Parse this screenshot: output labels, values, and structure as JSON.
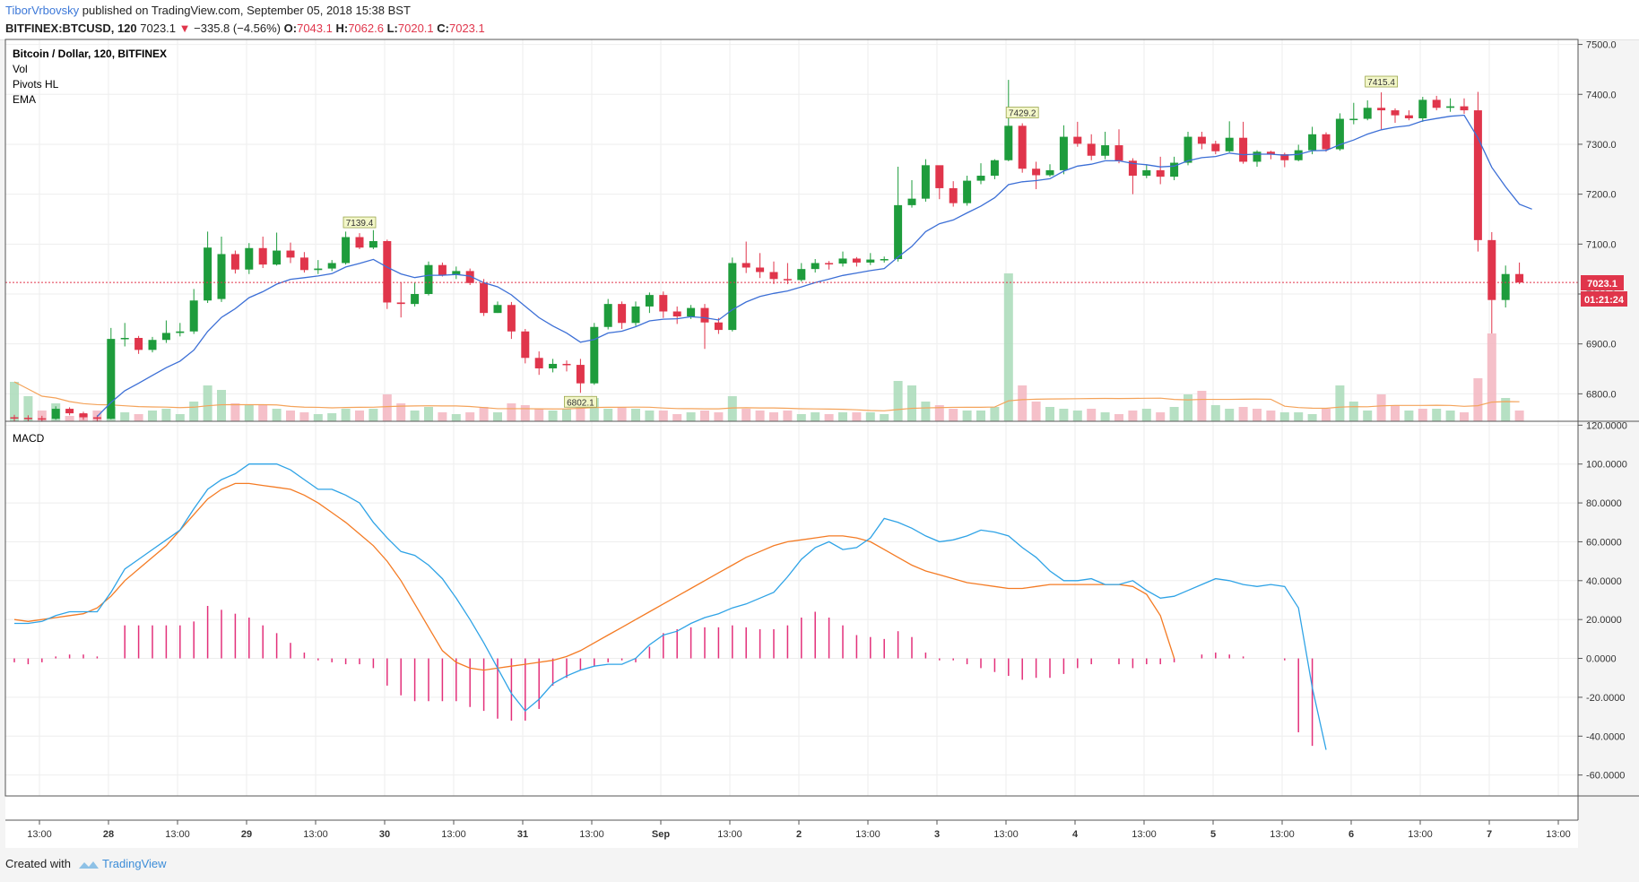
{
  "header": {
    "author": "TiborVrbovsky",
    "published_text": "published on TradingView.com, September 05, 2018 15:38 BST",
    "symbol": "BITFINEX:BTCUSD, 120",
    "last": "7023.1",
    "change_arrow": "▼",
    "change": "−335.8 (−4.56%)",
    "o_label": "O:",
    "o_value": "7043.1",
    "h_label": "H:",
    "h_value": "7062.6",
    "l_label": "L:",
    "l_value": "7020.1",
    "c_label": "C:",
    "c_value": "7023.1"
  },
  "legend": {
    "title": "Bitcoin / Dollar, 120, BITFINEX",
    "vol": "Vol",
    "pivots": "Pivots HL",
    "ema": "EMA",
    "macd": "MACD"
  },
  "price_badge": "7023.1",
  "countdown_badge": "01:21:24",
  "footer": {
    "created_with": "Created with",
    "brand": "TradingView"
  },
  "colors": {
    "up": "#1e9c3c",
    "down": "#e0354b",
    "ema": "#3c6fd6",
    "macd": "#2fa3e6",
    "signal": "#f47b24",
    "hist": "#e3307a",
    "vol_ma": "#f4a35a",
    "author": "#3c78d8"
  },
  "chart_data": {
    "type": "candlestick",
    "price_axis": {
      "ticks": [
        "6800.0",
        "6900.0",
        "7000.0",
        "7100.0",
        "7200.0",
        "7300.0",
        "7400.0",
        "7500.0"
      ],
      "range": [
        6745,
        7510
      ]
    },
    "macd_axis": {
      "ticks": [
        "-60.0000",
        "-40.0000",
        "-20.0000",
        "0.0000",
        "20.0000",
        "40.0000",
        "60.0000",
        "80.0000",
        "100.0000",
        "120.0000"
      ],
      "range": [
        -68,
        122
      ]
    },
    "time_axis": {
      "ticks": [
        "13:00",
        "28",
        "13:00",
        "29",
        "13:00",
        "30",
        "13:00",
        "31",
        "13:00",
        "Sep",
        "13:00",
        "2",
        "13:00",
        "3",
        "13:00",
        "4",
        "13:00",
        "5",
        "13:00",
        "6",
        "13:00",
        "7",
        "13:00"
      ]
    },
    "pivots": [
      {
        "bar": 25,
        "label": "7139.4",
        "type": "high"
      },
      {
        "bar": 41,
        "label": "6802.1",
        "type": "low"
      },
      {
        "bar": 73,
        "label": "7429.2",
        "type": "high"
      },
      {
        "bar": 99,
        "label": "7415.4",
        "type": "high"
      }
    ],
    "candles": [
      [
        6753,
        6752,
        6758,
        6746
      ],
      [
        6752,
        6751,
        6757,
        6745
      ],
      [
        6751,
        6750,
        6756,
        6744
      ],
      [
        6750,
        6770,
        6775,
        6748
      ],
      [
        6770,
        6761,
        6773,
        6757
      ],
      [
        6761,
        6753,
        6764,
        6748
      ],
      [
        6753,
        6750,
        6757,
        6744
      ],
      [
        6750,
        6910,
        6932,
        6749
      ],
      [
        6910,
        6912,
        6942,
        6895
      ],
      [
        6912,
        6888,
        6916,
        6880
      ],
      [
        6888,
        6908,
        6914,
        6883
      ],
      [
        6908,
        6922,
        6947,
        6902
      ],
      [
        6922,
        6925,
        6942,
        6915
      ],
      [
        6925,
        6987,
        7010,
        6920
      ],
      [
        6987,
        7093,
        7125,
        6982
      ],
      [
        6990,
        7080,
        7115,
        6984
      ],
      [
        7080,
        7049,
        7087,
        7041
      ],
      [
        7049,
        7092,
        7102,
        7040
      ],
      [
        7092,
        7059,
        7115,
        7052
      ],
      [
        7059,
        7087,
        7123,
        7057
      ],
      [
        7087,
        7073,
        7103,
        7062
      ],
      [
        7073,
        7048,
        7084,
        7043
      ],
      [
        7048,
        7051,
        7068,
        7040
      ],
      [
        7051,
        7062,
        7068,
        7046
      ],
      [
        7062,
        7114,
        7125,
        7059
      ],
      [
        7114,
        7093,
        7122,
        7090
      ],
      [
        7093,
        7106,
        7128,
        7090
      ],
      [
        7106,
        6983,
        7109,
        6970
      ],
      [
        6983,
        6980,
        7023,
        6953
      ],
      [
        6980,
        7000,
        7023,
        6975
      ],
      [
        7000,
        7058,
        7065,
        6997
      ],
      [
        7058,
        7038,
        7063,
        7035
      ],
      [
        7038,
        7046,
        7055,
        7030
      ],
      [
        7046,
        7022,
        7051,
        7018
      ],
      [
        7022,
        6962,
        7030,
        6956
      ],
      [
        6962,
        6978,
        6985,
        6962
      ],
      [
        6978,
        6925,
        6984,
        6910
      ],
      [
        6925,
        6872,
        6930,
        6861
      ],
      [
        6872,
        6851,
        6885,
        6838
      ],
      [
        6851,
        6860,
        6870,
        6843
      ],
      [
        6860,
        6858,
        6867,
        6845
      ],
      [
        6858,
        6821,
        6870,
        6802
      ],
      [
        6821,
        6934,
        6942,
        6818
      ],
      [
        6934,
        6980,
        6990,
        6929
      ],
      [
        6980,
        6942,
        6985,
        6930
      ],
      [
        6942,
        6975,
        6985,
        6936
      ],
      [
        6975,
        6998,
        7003,
        6962
      ],
      [
        6998,
        6965,
        7005,
        6952
      ],
      [
        6965,
        6955,
        6975,
        6940
      ],
      [
        6955,
        6972,
        6978,
        6950
      ],
      [
        6972,
        6943,
        6980,
        6890
      ],
      [
        6943,
        6928,
        6952,
        6920
      ],
      [
        6928,
        7062,
        7073,
        6925
      ],
      [
        7062,
        7053,
        7105,
        7042
      ],
      [
        7053,
        7044,
        7082,
        7032
      ],
      [
        7044,
        7030,
        7065,
        7020
      ],
      [
        7030,
        7028,
        7062,
        7020
      ],
      [
        7028,
        7050,
        7062,
        7025
      ],
      [
        7050,
        7062,
        7070,
        7043
      ],
      [
        7062,
        7061,
        7066,
        7049
      ],
      [
        7061,
        7071,
        7085,
        7055
      ],
      [
        7071,
        7063,
        7074,
        7055
      ],
      [
        7063,
        7069,
        7082,
        7058
      ],
      [
        7069,
        7070,
        7075,
        7063
      ],
      [
        7070,
        7178,
        7255,
        7065
      ],
      [
        7178,
        7191,
        7228,
        7173
      ],
      [
        7191,
        7258,
        7270,
        7185
      ],
      [
        7258,
        7212,
        7255,
        7190
      ],
      [
        7212,
        7182,
        7226,
        7175
      ],
      [
        7182,
        7227,
        7237,
        7177
      ],
      [
        7227,
        7237,
        7262,
        7220
      ],
      [
        7237,
        7268,
        7270,
        7230
      ],
      [
        7268,
        7337,
        7429,
        7266
      ],
      [
        7337,
        7251,
        7342,
        7243
      ],
      [
        7251,
        7238,
        7265,
        7210
      ],
      [
        7238,
        7248,
        7260,
        7235
      ],
      [
        7248,
        7315,
        7338,
        7240
      ],
      [
        7315,
        7301,
        7345,
        7295
      ],
      [
        7301,
        7277,
        7320,
        7268
      ],
      [
        7277,
        7298,
        7325,
        7270
      ],
      [
        7298,
        7267,
        7330,
        7262
      ],
      [
        7267,
        7237,
        7272,
        7200
      ],
      [
        7237,
        7248,
        7260,
        7232
      ],
      [
        7248,
        7235,
        7275,
        7220
      ],
      [
        7235,
        7263,
        7275,
        7228
      ],
      [
        7263,
        7315,
        7325,
        7258
      ],
      [
        7315,
        7301,
        7325,
        7290
      ],
      [
        7301,
        7286,
        7307,
        7280
      ],
      [
        7286,
        7313,
        7346,
        7284
      ],
      [
        7313,
        7265,
        7345,
        7261
      ],
      [
        7265,
        7285,
        7288,
        7255
      ],
      [
        7285,
        7280,
        7287,
        7270
      ],
      [
        7280,
        7268,
        7283,
        7254
      ],
      [
        7268,
        7288,
        7299,
        7266
      ],
      [
        7288,
        7320,
        7335,
        7280
      ],
      [
        7320,
        7290,
        7324,
        7285
      ],
      [
        7290,
        7351,
        7362,
        7287
      ],
      [
        7351,
        7351,
        7383,
        7340
      ],
      [
        7351,
        7373,
        7388,
        7348
      ],
      [
        7373,
        7368,
        7404,
        7330
      ],
      [
        7368,
        7358,
        7372,
        7343
      ],
      [
        7358,
        7352,
        7368,
        7348
      ],
      [
        7352,
        7389,
        7395,
        7345
      ],
      [
        7389,
        7373,
        7397,
        7368
      ],
      [
        7373,
        7376,
        7392,
        7365
      ],
      [
        7376,
        7368,
        7392,
        7361
      ],
      [
        7368,
        7108,
        7405,
        7085
      ],
      [
        7108,
        6988,
        7124,
        6921
      ],
      [
        6988,
        7040,
        7057,
        6973
      ],
      [
        7040,
        7023,
        7063,
        7020
      ]
    ],
    "volume": [
      [
        44,
        1
      ],
      [
        28,
        1
      ],
      [
        12,
        0
      ],
      [
        20,
        1
      ],
      [
        6,
        0
      ],
      [
        8,
        0
      ],
      [
        12,
        0
      ],
      [
        16,
        1
      ],
      [
        10,
        1
      ],
      [
        8,
        0
      ],
      [
        12,
        1
      ],
      [
        14,
        1
      ],
      [
        8,
        1
      ],
      [
        22,
        1
      ],
      [
        40,
        1
      ],
      [
        35,
        1
      ],
      [
        20,
        0
      ],
      [
        18,
        1
      ],
      [
        18,
        0
      ],
      [
        14,
        1
      ],
      [
        12,
        0
      ],
      [
        10,
        0
      ],
      [
        8,
        1
      ],
      [
        9,
        1
      ],
      [
        14,
        1
      ],
      [
        12,
        0
      ],
      [
        14,
        1
      ],
      [
        30,
        0
      ],
      [
        20,
        0
      ],
      [
        12,
        1
      ],
      [
        16,
        1
      ],
      [
        10,
        0
      ],
      [
        8,
        1
      ],
      [
        10,
        0
      ],
      [
        16,
        0
      ],
      [
        10,
        1
      ],
      [
        20,
        0
      ],
      [
        18,
        0
      ],
      [
        14,
        0
      ],
      [
        12,
        1
      ],
      [
        14,
        1
      ],
      [
        22,
        0
      ],
      [
        26,
        1
      ],
      [
        14,
        1
      ],
      [
        16,
        0
      ],
      [
        14,
        1
      ],
      [
        12,
        1
      ],
      [
        12,
        0
      ],
      [
        8,
        0
      ],
      [
        10,
        1
      ],
      [
        12,
        0
      ],
      [
        10,
        0
      ],
      [
        28,
        1
      ],
      [
        14,
        0
      ],
      [
        12,
        0
      ],
      [
        10,
        0
      ],
      [
        12,
        0
      ],
      [
        8,
        1
      ],
      [
        10,
        1
      ],
      [
        8,
        0
      ],
      [
        10,
        1
      ],
      [
        10,
        0
      ],
      [
        10,
        1
      ],
      [
        8,
        1
      ],
      [
        45,
        1
      ],
      [
        40,
        1
      ],
      [
        22,
        1
      ],
      [
        18,
        0
      ],
      [
        14,
        0
      ],
      [
        12,
        1
      ],
      [
        12,
        1
      ],
      [
        16,
        1
      ],
      [
        165,
        1
      ],
      [
        40,
        0
      ],
      [
        22,
        0
      ],
      [
        16,
        1
      ],
      [
        14,
        1
      ],
      [
        12,
        1
      ],
      [
        14,
        0
      ],
      [
        10,
        1
      ],
      [
        8,
        0
      ],
      [
        12,
        0
      ],
      [
        14,
        1
      ],
      [
        10,
        0
      ],
      [
        16,
        1
      ],
      [
        30,
        1
      ],
      [
        34,
        0
      ],
      [
        18,
        1
      ],
      [
        14,
        1
      ],
      [
        16,
        0
      ],
      [
        14,
        0
      ],
      [
        12,
        0
      ],
      [
        10,
        1
      ],
      [
        10,
        1
      ],
      [
        8,
        1
      ],
      [
        14,
        0
      ],
      [
        40,
        1
      ],
      [
        22,
        1
      ],
      [
        12,
        1
      ],
      [
        30,
        0
      ],
      [
        18,
        0
      ],
      [
        12,
        1
      ],
      [
        14,
        0
      ],
      [
        14,
        1
      ],
      [
        12,
        1
      ],
      [
        10,
        0
      ],
      [
        48,
        0
      ],
      [
        98,
        0
      ],
      [
        26,
        1
      ],
      [
        12,
        0
      ]
    ],
    "macd": [
      18,
      18,
      19,
      22,
      24,
      24,
      24,
      34,
      46,
      51,
      56,
      61,
      66,
      77,
      87,
      92,
      95,
      100,
      100,
      100,
      97,
      92,
      87,
      87,
      84,
      80,
      70,
      62,
      55,
      53,
      48,
      41,
      31,
      20,
      8,
      -5,
      -18,
      -27,
      -21,
      -13,
      -9,
      -6,
      -4,
      -3,
      -3,
      0,
      7,
      12,
      14,
      18,
      21,
      23,
      26,
      28,
      31,
      34,
      42,
      51,
      57,
      60,
      56,
      57,
      62,
      72,
      70,
      67,
      63,
      60,
      61,
      63,
      66,
      65,
      63,
      57,
      52,
      45,
      40,
      40,
      41,
      38,
      38,
      40,
      35,
      31,
      32,
      35,
      38,
      41,
      40,
      38,
      37,
      38,
      37,
      26,
      -15,
      -47
    ],
    "signal": [
      20,
      19,
      20,
      21,
      22,
      23,
      26,
      32,
      40,
      46,
      52,
      58,
      66,
      74,
      82,
      87,
      90,
      90,
      89,
      88,
      87,
      84,
      80,
      75,
      70,
      64,
      58,
      50,
      40,
      28,
      16,
      4,
      -2,
      -5,
      -6,
      -5,
      -4,
      -3,
      -2,
      -1,
      1,
      4,
      8,
      12,
      16,
      20,
      24,
      28,
      32,
      36,
      40,
      44,
      48,
      52,
      55,
      58,
      60,
      61,
      62,
      63,
      63,
      62,
      60,
      56,
      52,
      48,
      45,
      43,
      41,
      39,
      38,
      37,
      36,
      36,
      37,
      38,
      38,
      38,
      38,
      38,
      38,
      37,
      33,
      22,
      0
    ],
    "hist": [
      -2,
      -3,
      -2,
      1,
      2,
      2,
      1,
      0,
      17,
      17,
      17,
      17,
      17,
      19,
      27,
      25,
      23,
      21,
      17,
      13,
      8,
      3,
      -1,
      -2,
      -3,
      -3,
      -5,
      -14,
      -19,
      -22,
      -22,
      -22,
      -22,
      -25,
      -27,
      -31,
      -32,
      -32,
      -26,
      -14,
      -10,
      -6,
      -4,
      -2,
      -1,
      -2,
      6,
      13,
      15,
      16,
      16,
      16,
      17,
      16,
      15,
      15,
      17,
      21,
      24,
      21,
      17,
      12,
      11,
      10,
      14,
      11,
      3,
      -1,
      -1,
      -3,
      -5,
      -7,
      -9,
      -11,
      -10,
      -10,
      -8,
      -5,
      -3,
      0,
      -3,
      -5,
      -3,
      -3,
      -2,
      0,
      2,
      3,
      2,
      1,
      0,
      0,
      -1,
      -38,
      -45
    ]
  }
}
